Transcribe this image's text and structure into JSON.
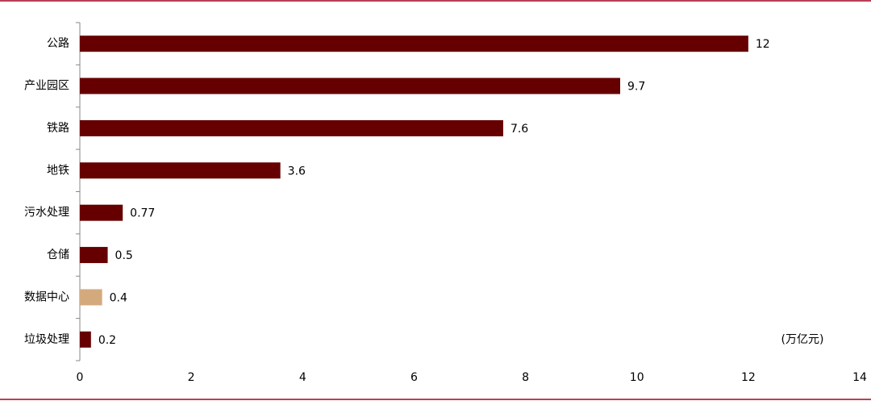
{
  "chart_data": {
    "type": "bar",
    "orientation": "horizontal",
    "categories": [
      "公路",
      "产业园区",
      "铁路",
      "地铁",
      "污水处理",
      "仓储",
      "数据中心",
      "垃圾处理"
    ],
    "values": [
      12,
      9.7,
      7.6,
      3.6,
      0.77,
      0.5,
      0.4,
      0.2
    ],
    "colors": [
      "#660000",
      "#660000",
      "#660000",
      "#660000",
      "#660000",
      "#660000",
      "#d4aa7d",
      "#660000"
    ],
    "xlim": [
      0,
      14
    ],
    "xticks": [
      0,
      2,
      4,
      6,
      8,
      10,
      12,
      14
    ],
    "unit": "(万亿元)"
  }
}
